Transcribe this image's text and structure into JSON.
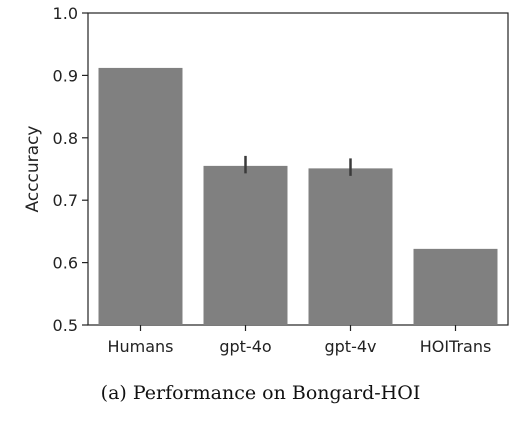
{
  "caption": "(a) Performance on Bongard-HOI",
  "chart_data": {
    "type": "bar",
    "categories": [
      "Humans",
      "gpt-4o",
      "gpt-4v",
      "HOITrans"
    ],
    "values": [
      0.912,
      0.755,
      0.751,
      0.622
    ],
    "error_low": [
      null,
      0.743,
      0.739,
      null
    ],
    "error_high": [
      null,
      0.771,
      0.767,
      null
    ],
    "ylabel": "Acccuracy",
    "ylim": [
      0.5,
      1.0
    ],
    "yticks": [
      "0.5",
      "0.6",
      "0.7",
      "0.8",
      "0.9",
      "1.0"
    ],
    "bar_color": "#808080",
    "error_color": "#3a3a3a",
    "grid": false
  }
}
